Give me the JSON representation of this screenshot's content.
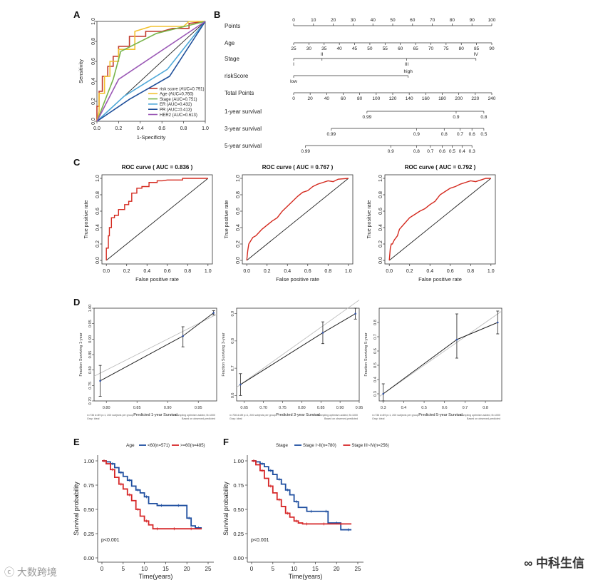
{
  "colors": {
    "risk": "#c0392b",
    "age": "#f2c230",
    "stage": "#78b44a",
    "er": "#4ea8d8",
    "pr": "#1f4f9a",
    "her2": "#9b59b6",
    "km_red": "#d62728",
    "km_blue": "#1f4fa0",
    "black": "#222222"
  },
  "chart_data": [
    {
      "panel": "A",
      "type": "line",
      "title": "",
      "xlabel": "1-Specificity",
      "ylabel": "Sensitivity",
      "xlim": [
        0,
        1
      ],
      "ylim": [
        0,
        1
      ],
      "ticks": [
        "0.0",
        "0.2",
        "0.4",
        "0.6",
        "0.8",
        "1.0"
      ],
      "series": [
        {
          "name": "risk score (AUC=0.791)",
          "color": "risk",
          "x": [
            0,
            0,
            0.02,
            0.02,
            0.05,
            0.05,
            0.1,
            0.1,
            0.15,
            0.15,
            0.2,
            0.2,
            0.3,
            0.3,
            0.45,
            0.45,
            0.6,
            0.7,
            0.85,
            0.85,
            1
          ],
          "y": [
            0,
            0.15,
            0.15,
            0.3,
            0.3,
            0.45,
            0.45,
            0.55,
            0.55,
            0.65,
            0.65,
            0.75,
            0.75,
            0.85,
            0.85,
            0.9,
            0.9,
            0.93,
            0.93,
            0.98,
            1
          ]
        },
        {
          "name": "Age (AUC=0.760)",
          "color": "age",
          "x": [
            0,
            0.02,
            0.02,
            0.07,
            0.07,
            0.12,
            0.12,
            0.2,
            0.2,
            0.35,
            0.35,
            0.5,
            0.8,
            0.85,
            0.9,
            1
          ],
          "y": [
            0,
            0.1,
            0.28,
            0.28,
            0.45,
            0.45,
            0.6,
            0.6,
            0.72,
            0.72,
            0.9,
            0.95,
            0.95,
            1,
            1,
            1
          ]
        },
        {
          "name": "Stage (AUC=0.751)",
          "color": "stage",
          "x": [
            0,
            0.15,
            0.22,
            0.55,
            1
          ],
          "y": [
            0,
            0.42,
            0.7,
            0.88,
            1
          ]
        },
        {
          "name": "ER (AUC=0.432)",
          "color": "er",
          "x": [
            0,
            0.25,
            0.65,
            1
          ],
          "y": [
            0,
            0.25,
            0.52,
            1
          ]
        },
        {
          "name": "PR (AUC=0.413)",
          "color": "pr",
          "x": [
            0,
            0.3,
            0.67,
            1
          ],
          "y": [
            0,
            0.22,
            0.45,
            1
          ]
        },
        {
          "name": "HER2 (AUC=0.613)",
          "color": "her2",
          "x": [
            0,
            0.2,
            1
          ],
          "y": [
            0,
            0.42,
            1
          ]
        }
      ],
      "diagonal": true
    },
    {
      "panel": "B",
      "type": "nomogram",
      "rows": [
        {
          "label": "Points",
          "ticks": [
            "0",
            "10",
            "20",
            "30",
            "40",
            "50",
            "60",
            "70",
            "80",
            "90",
            "100"
          ],
          "from": 0,
          "to": 100,
          "range": [
            0,
            100
          ]
        },
        {
          "label": "Age",
          "ticks": [
            "25",
            "30",
            "35",
            "40",
            "45",
            "50",
            "55",
            "60",
            "65",
            "70",
            "75",
            "80",
            "85",
            "90"
          ],
          "from": 0,
          "to": 100,
          "range": [
            25,
            90
          ]
        },
        {
          "label": "Stage",
          "ticks": [
            "I",
            "II",
            "III",
            "IV"
          ],
          "values": [
            0,
            14.3,
            57,
            92
          ]
        },
        {
          "label": "riskScore",
          "ticks": [
            "low",
            "high"
          ],
          "values": [
            0,
            57.8
          ]
        },
        {
          "label": "Total Points",
          "ticks": [
            "0",
            "20",
            "40",
            "60",
            "80",
            "100",
            "120",
            "140",
            "160",
            "180",
            "200",
            "220",
            "240"
          ],
          "from": 0,
          "to": 100,
          "range": [
            0,
            240
          ]
        },
        {
          "label": "1-year survival",
          "ticks": [
            "0.99",
            "0.9",
            "0.8"
          ],
          "values": [
            37,
            82,
            96
          ]
        },
        {
          "label": "3-year survival",
          "ticks": [
            "0.99",
            "0.9",
            "0.8",
            "0.7",
            "0.6",
            "0.5"
          ],
          "values": [
            19,
            62,
            76,
            84,
            90,
            96
          ]
        },
        {
          "label": "5-year survival",
          "ticks": [
            "0.99",
            "0.9",
            "0.8",
            "0.7",
            "0.6",
            "0.5",
            "0.4",
            "0.3"
          ],
          "values": [
            6,
            49,
            62,
            69,
            75,
            80,
            85,
            90
          ]
        }
      ]
    },
    {
      "panel": "C1",
      "type": "line",
      "title": "ROC curve ( AUC = 0.836 )",
      "xlabel": "False positive rate",
      "ylabel": "True positive rate",
      "ticks": [
        "0.0",
        "0.2",
        "0.4",
        "0.6",
        "0.8",
        "1.0"
      ],
      "x": [
        0,
        0,
        0.02,
        0.02,
        0.03,
        0.03,
        0.05,
        0.05,
        0.08,
        0.08,
        0.12,
        0.12,
        0.18,
        0.18,
        0.22,
        0.22,
        0.25,
        0.25,
        0.3,
        0.3,
        0.35,
        0.35,
        0.42,
        0.42,
        0.5,
        0.5,
        0.55,
        0.6,
        0.75,
        0.75,
        1
      ],
      "y": [
        0,
        0.15,
        0.15,
        0.3,
        0.3,
        0.4,
        0.4,
        0.52,
        0.52,
        0.55,
        0.55,
        0.62,
        0.62,
        0.68,
        0.68,
        0.72,
        0.72,
        0.82,
        0.82,
        0.88,
        0.88,
        0.9,
        0.9,
        0.95,
        0.95,
        0.97,
        0.97,
        0.98,
        0.98,
        1,
        1
      ]
    },
    {
      "panel": "C2",
      "type": "line",
      "title": "ROC curve ( AUC = 0.767 )",
      "xlabel": "False positive rate",
      "ylabel": "True positive rate",
      "ticks": [
        "0.0",
        "0.2",
        "0.4",
        "0.6",
        "0.8",
        "1.0"
      ],
      "x": [
        0,
        0.01,
        0.02,
        0.04,
        0.06,
        0.09,
        0.12,
        0.15,
        0.2,
        0.25,
        0.3,
        0.35,
        0.4,
        0.45,
        0.5,
        0.55,
        0.6,
        0.65,
        0.7,
        0.75,
        0.8,
        0.85,
        0.9,
        1
      ],
      "y": [
        0,
        0.12,
        0.2,
        0.24,
        0.28,
        0.3,
        0.34,
        0.38,
        0.43,
        0.48,
        0.52,
        0.6,
        0.66,
        0.72,
        0.78,
        0.83,
        0.85,
        0.9,
        0.93,
        0.95,
        0.97,
        0.96,
        0.99,
        1
      ]
    },
    {
      "panel": "C3",
      "type": "line",
      "title": "ROC curve ( AUC = 0.792 )",
      "xlabel": "False positive rate",
      "ylabel": "True positive rate",
      "ticks": [
        "0.0",
        "0.2",
        "0.4",
        "0.6",
        "0.8",
        "1.0"
      ],
      "x": [
        0,
        0.01,
        0.02,
        0.03,
        0.05,
        0.08,
        0.1,
        0.15,
        0.2,
        0.25,
        0.3,
        0.35,
        0.4,
        0.45,
        0.5,
        0.55,
        0.6,
        0.65,
        0.7,
        0.75,
        0.8,
        0.85,
        0.9,
        0.95,
        1
      ],
      "y": [
        0,
        0.15,
        0.2,
        0.2,
        0.25,
        0.3,
        0.38,
        0.45,
        0.52,
        0.56,
        0.6,
        0.63,
        0.68,
        0.72,
        0.8,
        0.84,
        0.88,
        0.9,
        0.93,
        0.95,
        0.97,
        0.96,
        0.98,
        1,
        1
      ]
    },
    {
      "panel": "D1",
      "type": "line",
      "xlabel": "Predicted 1-year Survival",
      "ylabel": "Fraction Surviving 1-year",
      "xlim": [
        0.78,
        0.98
      ],
      "ylim": [
        0.7,
        1.0
      ],
      "xticks": [
        "0.80",
        "0.85",
        "0.90",
        "0.95"
      ],
      "xtick_values": [
        0.8,
        0.85,
        0.9,
        0.95
      ],
      "yticks": [
        "0.70",
        "0.75",
        "0.80",
        "0.85",
        "0.90",
        "0.95",
        "1.00"
      ],
      "ytick_values": [
        0.7,
        0.75,
        0.8,
        0.85,
        0.9,
        0.95,
        1.0
      ],
      "points": [
        {
          "x": 0.79,
          "y": 0.765,
          "lo": 0.715,
          "hi": 0.815
        },
        {
          "x": 0.925,
          "y": 0.91,
          "lo": 0.875,
          "hi": 0.94
        },
        {
          "x": 0.975,
          "y": 0.985,
          "lo": 0.978,
          "hi": 0.992
        }
      ],
      "ideal": [
        [
          0.78,
          0.78
        ],
        [
          0.98,
          0.98
        ]
      ],
      "note_left": "n=736 d=89 p=1, 200 subjects per group",
      "note_left2": "Gray: ideal",
      "note_right": "X - resampling optimism added, B=1000",
      "note_right2": "Based on observed-predicted"
    },
    {
      "panel": "D2",
      "type": "line",
      "xlabel": "Predicted 3-year Survival",
      "ylabel": "Fraction Surviving 3-year",
      "xlim": [
        0.63,
        0.95
      ],
      "ylim": [
        0.58,
        0.92
      ],
      "xticks": [
        "0.65",
        "0.70",
        "0.75",
        "0.80",
        "0.85",
        "0.90",
        "0.95"
      ],
      "xtick_values": [
        0.65,
        0.7,
        0.75,
        0.8,
        0.85,
        0.9,
        0.95
      ],
      "yticks": [
        "0.6",
        "0.7",
        "0.8",
        "0.9"
      ],
      "ytick_values": [
        0.6,
        0.7,
        0.8,
        0.9
      ],
      "points": [
        {
          "x": 0.64,
          "y": 0.64,
          "lo": 0.6,
          "hi": 0.68
        },
        {
          "x": 0.855,
          "y": 0.83,
          "lo": 0.79,
          "hi": 0.87
        },
        {
          "x": 0.94,
          "y": 0.9,
          "lo": 0.88,
          "hi": 0.92
        }
      ],
      "ideal": [
        [
          0.63,
          0.63
        ],
        [
          0.95,
          0.95
        ]
      ],
      "note_left": "n=736 d=89 p=1, 200 subjects per group",
      "note_left2": "Gray: ideal",
      "note_right": "X - resampling optimism added, B=1000",
      "note_right2": "Based on observed-predicted"
    },
    {
      "panel": "D3",
      "type": "line",
      "xlabel": "Predicted 5-year Survival",
      "ylabel": "Fraction Surviving 5-year",
      "xlim": [
        0.28,
        0.88
      ],
      "ylim": [
        0.25,
        0.9
      ],
      "xticks": [
        "0.3",
        "0.4",
        "0.5",
        "0.6",
        "0.7",
        "0.8"
      ],
      "xtick_values": [
        0.3,
        0.4,
        0.5,
        0.6,
        0.7,
        0.8
      ],
      "yticks": [
        "0.3",
        "0.4",
        "0.5",
        "0.6",
        "0.7",
        "0.8"
      ],
      "ytick_values": [
        0.3,
        0.4,
        0.5,
        0.6,
        0.7,
        0.8
      ],
      "points": [
        {
          "x": 0.3,
          "y": 0.3,
          "lo": 0.25,
          "hi": 0.37
        },
        {
          "x": 0.66,
          "y": 0.68,
          "lo": 0.55,
          "hi": 0.86
        },
        {
          "x": 0.86,
          "y": 0.8,
          "lo": 0.72,
          "hi": 0.88
        }
      ],
      "ideal": [
        [
          0.28,
          0.28
        ],
        [
          0.88,
          0.88
        ]
      ],
      "note_left": "n=736 d=89 p=1, 200 subjects per group",
      "note_left2": "Gray: ideal",
      "note_right": "X - resampling optimism added, B=1000",
      "note_right2": "Based on observed-predicted"
    },
    {
      "panel": "E",
      "type": "line",
      "legend_title": "Age",
      "xlabel": "Time(years)",
      "ylabel": "Survival probability",
      "xlim": [
        0,
        25
      ],
      "ylim": [
        0,
        1
      ],
      "xticks": [
        "0",
        "5",
        "10",
        "15",
        "20",
        "25"
      ],
      "xtick_values": [
        0,
        5,
        10,
        15,
        20,
        25
      ],
      "yticks": [
        "0.00",
        "0.25",
        "0.50",
        "0.75",
        "1.00"
      ],
      "ytick_values": [
        0,
        0.25,
        0.5,
        0.75,
        1
      ],
      "pvalue": "p<0.001",
      "series": [
        {
          "name": "<60(n=571)",
          "color": "km_blue",
          "x": [
            0,
            1,
            2,
            3,
            4,
            5,
            6,
            7,
            8,
            9,
            10,
            11,
            13,
            15,
            17,
            19,
            20,
            21,
            22,
            23.5
          ],
          "y": [
            1,
            0.99,
            0.97,
            0.93,
            0.88,
            0.84,
            0.8,
            0.74,
            0.7,
            0.67,
            0.63,
            0.56,
            0.54,
            0.54,
            0.54,
            0.54,
            0.41,
            0.33,
            0.31,
            0.31
          ]
        },
        {
          "name": ">=60(n=485)",
          "color": "km_red",
          "x": [
            0,
            1,
            2,
            3,
            4,
            5,
            6,
            7,
            8,
            9,
            10,
            11,
            12,
            14,
            16,
            18,
            20,
            22,
            23.5
          ],
          "y": [
            1,
            0.97,
            0.91,
            0.83,
            0.76,
            0.71,
            0.65,
            0.59,
            0.5,
            0.43,
            0.38,
            0.34,
            0.3,
            0.3,
            0.3,
            0.3,
            0.3,
            0.3,
            0.3
          ]
        }
      ]
    },
    {
      "panel": "F",
      "type": "line",
      "legend_title": "Stage",
      "xlabel": "Time(years)",
      "ylabel": "Survival probability",
      "xlim": [
        0,
        25
      ],
      "ylim": [
        0,
        1
      ],
      "xticks": [
        "0",
        "5",
        "10",
        "15",
        "20",
        "25"
      ],
      "xtick_values": [
        0,
        5,
        10,
        15,
        20,
        25
      ],
      "yticks": [
        "0.00",
        "0.25",
        "0.50",
        "0.75",
        "1.00"
      ],
      "ytick_values": [
        0,
        0.25,
        0.5,
        0.75,
        1
      ],
      "pvalue": "p<0.001",
      "series": [
        {
          "name": "Stage I~II(n=780)",
          "color": "km_blue",
          "x": [
            0,
            1,
            2,
            3,
            4,
            5,
            6,
            7,
            8,
            9,
            10,
            11,
            13,
            15,
            17,
            18,
            19,
            21,
            22,
            23.5
          ],
          "y": [
            1,
            0.99,
            0.97,
            0.94,
            0.9,
            0.86,
            0.81,
            0.76,
            0.7,
            0.65,
            0.58,
            0.52,
            0.48,
            0.48,
            0.48,
            0.36,
            0.36,
            0.29,
            0.29,
            0.29
          ]
        },
        {
          "name": "Stage III~IV(n=256)",
          "color": "km_red",
          "x": [
            0,
            1,
            2,
            3,
            4,
            5,
            6,
            7,
            8,
            9,
            10,
            11,
            12,
            14,
            16,
            18,
            20,
            22,
            23.5
          ],
          "y": [
            1,
            0.96,
            0.9,
            0.82,
            0.74,
            0.67,
            0.6,
            0.53,
            0.46,
            0.42,
            0.38,
            0.36,
            0.35,
            0.35,
            0.35,
            0.35,
            0.35,
            0.35,
            0.35
          ]
        }
      ]
    }
  ],
  "labels": {
    "panel_A": "A",
    "panel_B": "B",
    "panel_C": "C",
    "panel_D": "D",
    "panel_E": "E",
    "panel_F": "F"
  },
  "watermarks": {
    "left": "大数跨境",
    "right": "中科生信"
  }
}
